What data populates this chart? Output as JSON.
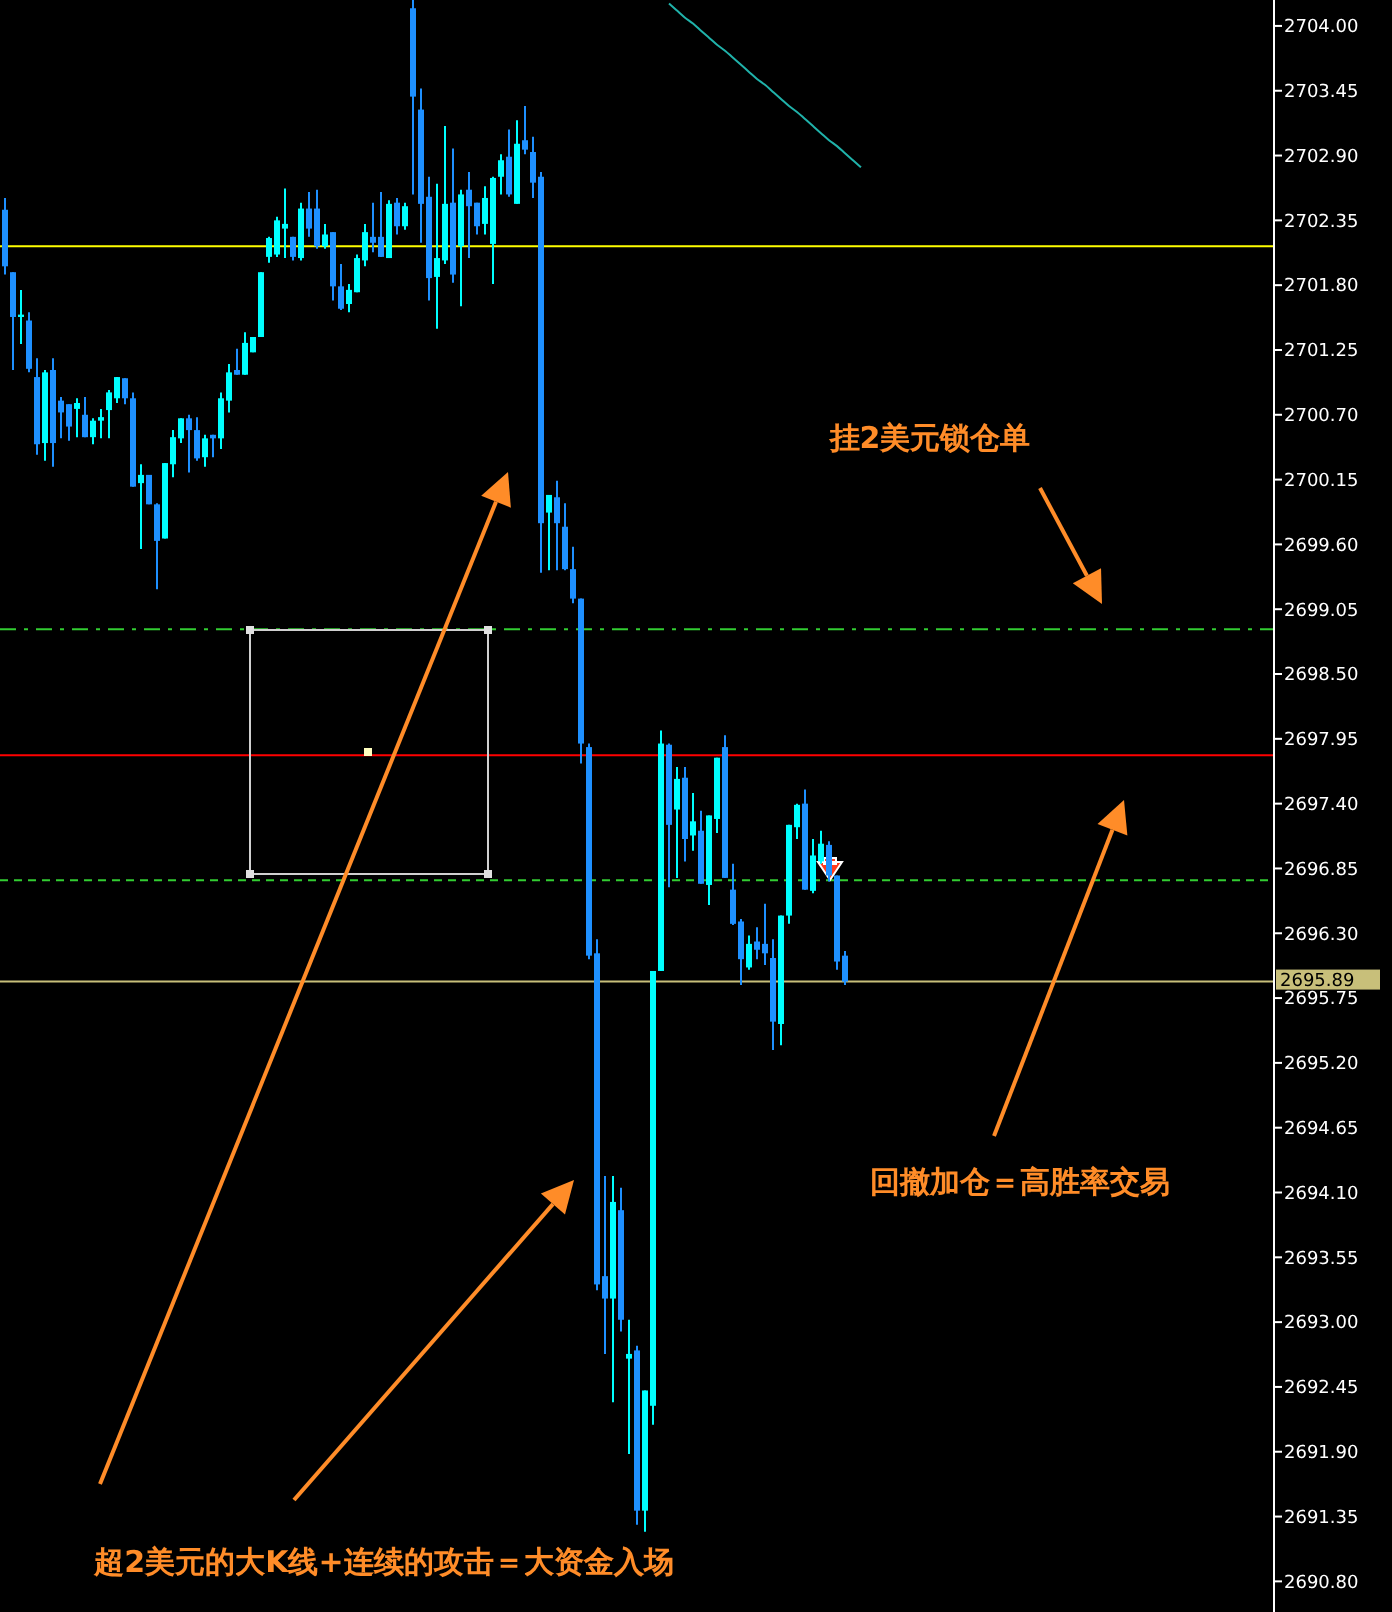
{
  "chart_data": {
    "type": "candlestick",
    "categories": [
      null,
      null,
      null,
      null,
      null,
      null,
      null,
      null,
      null,
      null,
      null,
      null,
      null,
      null,
      null,
      null,
      null,
      null,
      null,
      null,
      null,
      null,
      null,
      null,
      null,
      null,
      null,
      null,
      null,
      null,
      null,
      null,
      null,
      null,
      null,
      null,
      null,
      null,
      null,
      null,
      null,
      null,
      null,
      null,
      null,
      null,
      null,
      null,
      null,
      null,
      null,
      null,
      null,
      null,
      null,
      null,
      null,
      null,
      null,
      null,
      null,
      null,
      null,
      null,
      null,
      null,
      null,
      null,
      null,
      null,
      null,
      null,
      null,
      null,
      null,
      null,
      null,
      null,
      null,
      null,
      null,
      null,
      null,
      null,
      null,
      null,
      null,
      null,
      null,
      null,
      null,
      null,
      null,
      null,
      null,
      null,
      null,
      null,
      null,
      null,
      null,
      null,
      null,
      null,
      null,
      null,
      null,
      null,
      null,
      null,
      null,
      null,
      null,
      null,
      null,
      null,
      null,
      null,
      null,
      null,
      null,
      null,
      null,
      null,
      null,
      null,
      null,
      null,
      null,
      null,
      null,
      null,
      null,
      null,
      null,
      null,
      null,
      null,
      null,
      null,
      null,
      null,
      null,
      null,
      null,
      null,
      null,
      null,
      null,
      null,
      null,
      null,
      null,
      null,
      null,
      null,
      null,
      null,
      null
    ],
    "ohlc": [
      [
        2702.44,
        2702.54,
        2701.89,
        2701.96
      ],
      [
        2701.91,
        2701.91,
        2701.08,
        2701.53
      ],
      [
        2701.53,
        2701.76,
        2701.3,
        2701.55
      ],
      [
        2701.5,
        2701.57,
        2701.06,
        2701.09
      ],
      [
        2701.02,
        2701.18,
        2700.36,
        2700.45
      ],
      [
        2700.46,
        2701.08,
        2700.31,
        2701.06
      ],
      [
        2701.08,
        2701.18,
        2700.26,
        2700.46
      ],
      [
        2700.82,
        2700.85,
        2700.5,
        2700.72
      ],
      [
        2700.79,
        2700.79,
        2700.48,
        2700.6
      ],
      [
        2700.75,
        2700.84,
        2700.51,
        2700.8
      ],
      [
        2700.7,
        2700.85,
        2700.51,
        2700.51
      ],
      [
        2700.51,
        2700.67,
        2700.45,
        2700.65
      ],
      [
        2700.65,
        2700.75,
        2700.5,
        2700.68
      ],
      [
        2700.74,
        2700.91,
        2700.5,
        2700.89
      ],
      [
        2700.84,
        2701.02,
        2700.8,
        2701.02
      ],
      [
        2701.01,
        2701.01,
        2700.79,
        2700.84
      ],
      [
        2700.84,
        2700.89,
        2700.09,
        2700.09
      ],
      [
        2700.12,
        2700.28,
        2699.56,
        2700.19
      ],
      [
        2700.19,
        2700.19,
        2699.94,
        2699.94
      ],
      [
        2699.94,
        2699.95,
        2699.22,
        2699.63
      ],
      [
        2699.65,
        2700.29,
        2699.65,
        2700.29
      ],
      [
        2700.28,
        2700.57,
        2700.17,
        2700.51
      ],
      [
        2700.5,
        2700.67,
        2700.46,
        2700.67
      ],
      [
        2700.67,
        2700.7,
        2700.21,
        2700.57
      ],
      [
        2700.57,
        2700.68,
        2700.31,
        2700.33
      ],
      [
        2700.34,
        2700.53,
        2700.26,
        2700.5
      ],
      [
        2700.53,
        2700.53,
        2700.34,
        2700.5
      ],
      [
        2700.5,
        2700.89,
        2700.41,
        2700.84
      ],
      [
        2700.82,
        2701.13,
        2700.72,
        2701.06
      ],
      [
        2701.08,
        2701.26,
        2701.04,
        2701.04
      ],
      [
        2701.04,
        2701.4,
        2701.04,
        2701.31
      ],
      [
        2701.23,
        2701.36,
        2701.23,
        2701.36
      ],
      [
        2701.36,
        2701.91,
        2701.36,
        2701.91
      ],
      [
        2702.04,
        2702.21,
        2701.99,
        2702.2
      ],
      [
        2702.06,
        2702.38,
        2702.04,
        2702.35
      ],
      [
        2702.28,
        2702.62,
        2702.03,
        2702.32
      ],
      [
        2702.21,
        2702.21,
        2702.01,
        2702.04
      ],
      [
        2702.03,
        2702.5,
        2702.01,
        2702.45
      ],
      [
        2702.45,
        2702.59,
        2702.21,
        2702.28
      ],
      [
        2702.45,
        2702.61,
        2702.11,
        2702.13
      ],
      [
        2702.13,
        2702.32,
        2702.11,
        2702.23
      ],
      [
        2702.25,
        2702.25,
        2701.67,
        2701.79
      ],
      [
        2701.79,
        2701.98,
        2701.59,
        2701.6
      ],
      [
        2701.64,
        2701.81,
        2701.57,
        2701.76
      ],
      [
        2701.74,
        2702.06,
        2701.74,
        2702.03
      ],
      [
        2702.01,
        2702.32,
        2701.96,
        2702.25
      ],
      [
        2702.21,
        2702.5,
        2702.08,
        2702.16
      ],
      [
        2702.21,
        2702.59,
        2702.04,
        2702.04
      ],
      [
        2702.03,
        2702.52,
        2702.03,
        2702.49
      ],
      [
        2702.5,
        2702.54,
        2702.23,
        2702.3
      ],
      [
        2702.3,
        2702.5,
        2702.27,
        2702.47
      ],
      [
        2704.15,
        2704.22,
        2702.57,
        2703.4
      ],
      [
        2703.29,
        2703.47,
        2702.16,
        2702.49
      ],
      [
        2702.55,
        2702.72,
        2701.67,
        2701.86
      ],
      [
        2701.87,
        2702.66,
        2701.43,
        2702.03
      ],
      [
        2702.01,
        2703.15,
        2701.98,
        2702.49
      ],
      [
        2702.5,
        2702.96,
        2701.82,
        2701.89
      ],
      [
        2702.13,
        2702.61,
        2701.62,
        2702.57
      ],
      [
        2702.61,
        2702.76,
        2702.03,
        2702.47
      ],
      [
        2702.5,
        2702.5,
        2702.23,
        2702.3
      ],
      [
        2702.32,
        2702.64,
        2702.23,
        2702.54
      ],
      [
        2702.15,
        2702.72,
        2701.81,
        2702.71
      ],
      [
        2702.72,
        2702.91,
        2702.57,
        2702.86
      ],
      [
        2702.89,
        2703.12,
        2702.55,
        2702.57
      ],
      [
        2702.49,
        2703.2,
        2702.49,
        2703.0
      ],
      [
        2703.03,
        2703.32,
        2702.91,
        2702.95
      ],
      [
        2702.93,
        2703.06,
        2702.54,
        2702.67
      ],
      [
        2702.72,
        2702.76,
        2699.36,
        2699.78
      ],
      [
        2699.87,
        2700.02,
        2699.38,
        2700.02
      ],
      [
        2700.0,
        2700.14,
        2699.38,
        2699.78
      ],
      [
        2699.75,
        2699.95,
        2699.38,
        2699.39
      ],
      [
        2699.39,
        2699.58,
        2699.1,
        2699.14
      ],
      [
        2699.14,
        2699.14,
        2697.74,
        2697.91
      ],
      [
        2697.88,
        2697.91,
        2696.08,
        2696.11
      ],
      [
        2696.13,
        2696.25,
        2693.27,
        2693.32
      ],
      [
        2693.39,
        2694.24,
        2692.73,
        2693.2
      ],
      [
        2693.2,
        2694.24,
        2692.32,
        2694.02
      ],
      [
        2693.95,
        2694.14,
        2692.92,
        2693.02
      ],
      [
        2692.69,
        2693.02,
        2691.88,
        2692.73
      ],
      [
        2692.76,
        2692.8,
        2691.28,
        2691.4
      ],
      [
        2691.4,
        2692.42,
        2691.22,
        2692.42
      ],
      [
        2692.29,
        2695.98,
        2692.13,
        2695.98
      ],
      [
        2695.98,
        2698.02,
        2695.98,
        2697.91
      ],
      [
        2697.9,
        2697.91,
        2696.69,
        2697.22
      ],
      [
        2697.35,
        2697.71,
        2696.77,
        2697.61
      ],
      [
        2697.62,
        2697.71,
        2696.91,
        2697.1
      ],
      [
        2697.13,
        2697.49,
        2697.0,
        2697.25
      ],
      [
        2697.17,
        2697.34,
        2696.72,
        2696.72
      ],
      [
        2696.71,
        2697.3,
        2696.54,
        2697.3
      ],
      [
        2697.27,
        2697.79,
        2697.15,
        2697.79
      ],
      [
        2697.88,
        2697.98,
        2696.77,
        2696.77
      ],
      [
        2696.67,
        2696.89,
        2696.37,
        2696.38
      ],
      [
        2696.4,
        2696.42,
        2695.86,
        2696.08
      ],
      [
        2696.01,
        2696.28,
        2695.99,
        2696.21
      ],
      [
        2696.23,
        2696.35,
        2696.08,
        2696.16
      ],
      [
        2696.21,
        2696.55,
        2696.03,
        2696.13
      ],
      [
        2696.09,
        2696.25,
        2695.31,
        2695.55
      ],
      [
        2695.53,
        2696.45,
        2695.35,
        2696.45
      ],
      [
        2696.45,
        2697.22,
        2696.38,
        2697.22
      ],
      [
        2697.2,
        2697.4,
        2697.1,
        2697.39
      ],
      [
        2697.4,
        2697.52,
        2696.67,
        2696.67
      ],
      [
        2696.66,
        2697.1,
        2696.64,
        2696.96
      ],
      [
        2696.91,
        2697.17,
        2696.89,
        2697.06
      ],
      [
        2697.05,
        2697.08,
        2696.74,
        2696.79
      ],
      [
        2696.79,
        2696.79,
        2695.99,
        2696.06
      ],
      [
        2696.11,
        2696.15,
        2695.86,
        2695.89
      ],
      null,
      null,
      null,
      null,
      null,
      null,
      null,
      null,
      null,
      null,
      null,
      null,
      null,
      null,
      null,
      null,
      null,
      null,
      null,
      null,
      null,
      null,
      null,
      null,
      null,
      null,
      null,
      null,
      null,
      null,
      null,
      null,
      null,
      null,
      null,
      null,
      null,
      null,
      null,
      null,
      null,
      null,
      null,
      null,
      null,
      null,
      null,
      null,
      null,
      null,
      null,
      null,
      null
    ],
    "colors": [
      "#1e90ff",
      "#1e90ff",
      "#00ffff",
      "#1e90ff",
      "#1e90ff",
      "#00ffff",
      "#1e90ff",
      "#1e90ff",
      "#1e90ff",
      "#00ffff",
      "#1e90ff",
      "#00ffff",
      "#00ffff",
      "#00ffff",
      "#00ffff",
      "#1e90ff",
      "#1e90ff",
      "#00ffff",
      "#1e90ff",
      "#1e90ff",
      "#00ffff",
      "#00ffff",
      "#00ffff",
      "#1e90ff",
      "#1e90ff",
      "#00ffff",
      "#1e90ff",
      "#00ffff",
      "#00ffff",
      "#1e90ff",
      "#00ffff",
      "#00ffff",
      "#00ffff",
      "#00ffff",
      "#00ffff",
      "#00ffff",
      "#1e90ff",
      "#00ffff",
      "#1e90ff",
      "#1e90ff",
      "#00ffff",
      "#1e90ff",
      "#1e90ff",
      "#00ffff",
      "#00ffff",
      "#00ffff",
      "#1e90ff",
      "#1e90ff",
      "#00ffff",
      "#1e90ff",
      "#00ffff",
      "#1e90ff",
      "#1e90ff",
      "#1e90ff",
      "#00ffff",
      "#00ffff",
      "#1e90ff",
      "#00ffff",
      "#1e90ff",
      "#1e90ff",
      "#00ffff",
      "#00ffff",
      "#00ffff",
      "#1e90ff",
      "#00ffff",
      "#1e90ff",
      "#1e90ff",
      "#1e90ff",
      "#00ffff",
      "#1e90ff",
      "#1e90ff",
      "#1e90ff",
      "#1e90ff",
      "#1e90ff",
      "#1e90ff",
      "#1e90ff",
      "#00ffff",
      "#1e90ff",
      "#00ffff",
      "#1e90ff",
      "#00ffff",
      "#00ffff",
      "#00ffff",
      "#1e90ff",
      "#00ffff",
      "#1e90ff",
      "#00ffff",
      "#1e90ff",
      "#00ffff",
      "#00ffff",
      "#1e90ff",
      "#1e90ff",
      "#1e90ff",
      "#00ffff",
      "#1e90ff",
      "#1e90ff",
      "#1e90ff",
      "#00ffff",
      "#00ffff",
      "#00ffff",
      "#1e90ff",
      "#00ffff",
      "#00ffff",
      "#1e90ff",
      "#1e90ff",
      "#1e90ff",
      null,
      null,
      null,
      null,
      null,
      null,
      null,
      null,
      null,
      null,
      null,
      null,
      null,
      null,
      null,
      null,
      null,
      null,
      null,
      null,
      null,
      null,
      null,
      null,
      null,
      null,
      null,
      null,
      null,
      null,
      null,
      null,
      null,
      null,
      null,
      null,
      null,
      null,
      null,
      null,
      null,
      null,
      null,
      null,
      null,
      null,
      null,
      null,
      null,
      null,
      null,
      null,
      null
    ],
    "series": [
      {
        "type": "line",
        "color": "#20b2aa",
        "values": [
          null,
          null,
          null,
          null,
          null,
          null,
          null,
          null,
          null,
          null,
          null,
          null,
          null,
          null,
          null,
          null,
          null,
          null,
          null,
          null,
          null,
          null,
          null,
          null,
          null,
          null,
          null,
          null,
          null,
          null,
          null,
          null,
          null,
          null,
          null,
          null,
          null,
          null,
          null,
          null,
          null,
          null,
          null,
          null,
          null,
          null,
          null,
          null,
          null,
          null,
          null,
          null,
          null,
          null,
          null,
          null,
          null,
          null,
          null,
          null,
          null,
          null,
          null,
          null,
          null,
          null,
          null,
          null,
          null,
          null,
          null,
          null,
          null,
          null,
          null,
          null,
          null,
          null,
          null,
          null,
          null,
          null,
          null,
          2704.19,
          2704.13,
          2704.07,
          2704.02,
          2703.96,
          2703.9,
          2703.84,
          2703.79,
          2703.73,
          2703.67,
          2703.61,
          2703.55,
          2703.5,
          2703.44,
          2703.38,
          2703.32,
          2703.27,
          2703.21,
          2703.15,
          2703.09,
          2703.03,
          2702.98,
          2702.92,
          2702.86,
          2702.8,
          null,
          null,
          null,
          null,
          null,
          null,
          null,
          null,
          null,
          null,
          null,
          null,
          null,
          null,
          null,
          null,
          null,
          null,
          null,
          null,
          null,
          null,
          null,
          null,
          null,
          null,
          null,
          null,
          null,
          null,
          null,
          null,
          null,
          null,
          null,
          null,
          null,
          null,
          null,
          null,
          null,
          null,
          null,
          null,
          null,
          null,
          null,
          null,
          null,
          null,
          null
        ]
      }
    ],
    "ylim": [
      2690.54,
      2704.22
    ],
    "yticks": [
      {
        "value": 2704,
        "label": "2704.00"
      },
      {
        "value": 2703.45,
        "label": "2703.45"
      },
      {
        "value": 2702.9,
        "label": "2702.90"
      },
      {
        "value": 2702.35,
        "label": "2702.35"
      },
      {
        "value": 2701.8,
        "label": "2701.80"
      },
      {
        "value": 2701.25,
        "label": "2701.25"
      },
      {
        "value": 2700.7,
        "label": "2700.70"
      },
      {
        "value": 2700.15,
        "label": "2700.15"
      },
      {
        "value": 2699.6,
        "label": "2699.60"
      },
      {
        "value": 2699.05,
        "label": "2699.05"
      },
      {
        "value": 2698.5,
        "label": "2698.50"
      },
      {
        "value": 2697.95,
        "label": "2697.95"
      },
      {
        "value": 2697.4,
        "label": "2697.40"
      },
      {
        "value": 2696.85,
        "label": "2696.85"
      },
      {
        "value": 2696.3,
        "label": "2696.30"
      },
      {
        "value": 2695.75,
        "label": "2695.75"
      },
      {
        "value": 2695.2,
        "label": "2695.20"
      },
      {
        "value": 2694.65,
        "label": "2694.65"
      },
      {
        "value": 2694.1,
        "label": "2694.10"
      },
      {
        "value": 2693.55,
        "label": "2693.55"
      },
      {
        "value": 2693,
        "label": "2693.00"
      },
      {
        "value": 2692.45,
        "label": "2692.45"
      },
      {
        "value": 2691.9,
        "label": "2691.90"
      },
      {
        "value": 2691.35,
        "label": "2691.35"
      },
      {
        "value": 2690.8,
        "label": "2690.80"
      }
    ],
    "tick_labels": "y",
    "grid": false,
    "ref_lines": [
      {
        "axis": "y",
        "value": 2702.13,
        "color": "#ffff00",
        "line_style": "solid"
      },
      {
        "axis": "y",
        "value": 2698.88,
        "color": "#32cd32",
        "line_style": "dashdot"
      },
      {
        "axis": "y",
        "value": 2697.81,
        "color": "#ff0000",
        "line_style": "solid"
      },
      {
        "axis": "y",
        "value": 2696.75,
        "color": "#32cd32",
        "line_style": "dashed"
      },
      {
        "axis": "y",
        "value": 2695.89,
        "color": "#c8bf7a",
        "line_style": "solid",
        "label": "2695.89"
      }
    ],
    "annotations": [
      "挂2美元锁仓单",
      "回撤加仓＝高胜率交易",
      "超2美元的大K线+连续的攻击＝大资金入场"
    ]
  }
}
